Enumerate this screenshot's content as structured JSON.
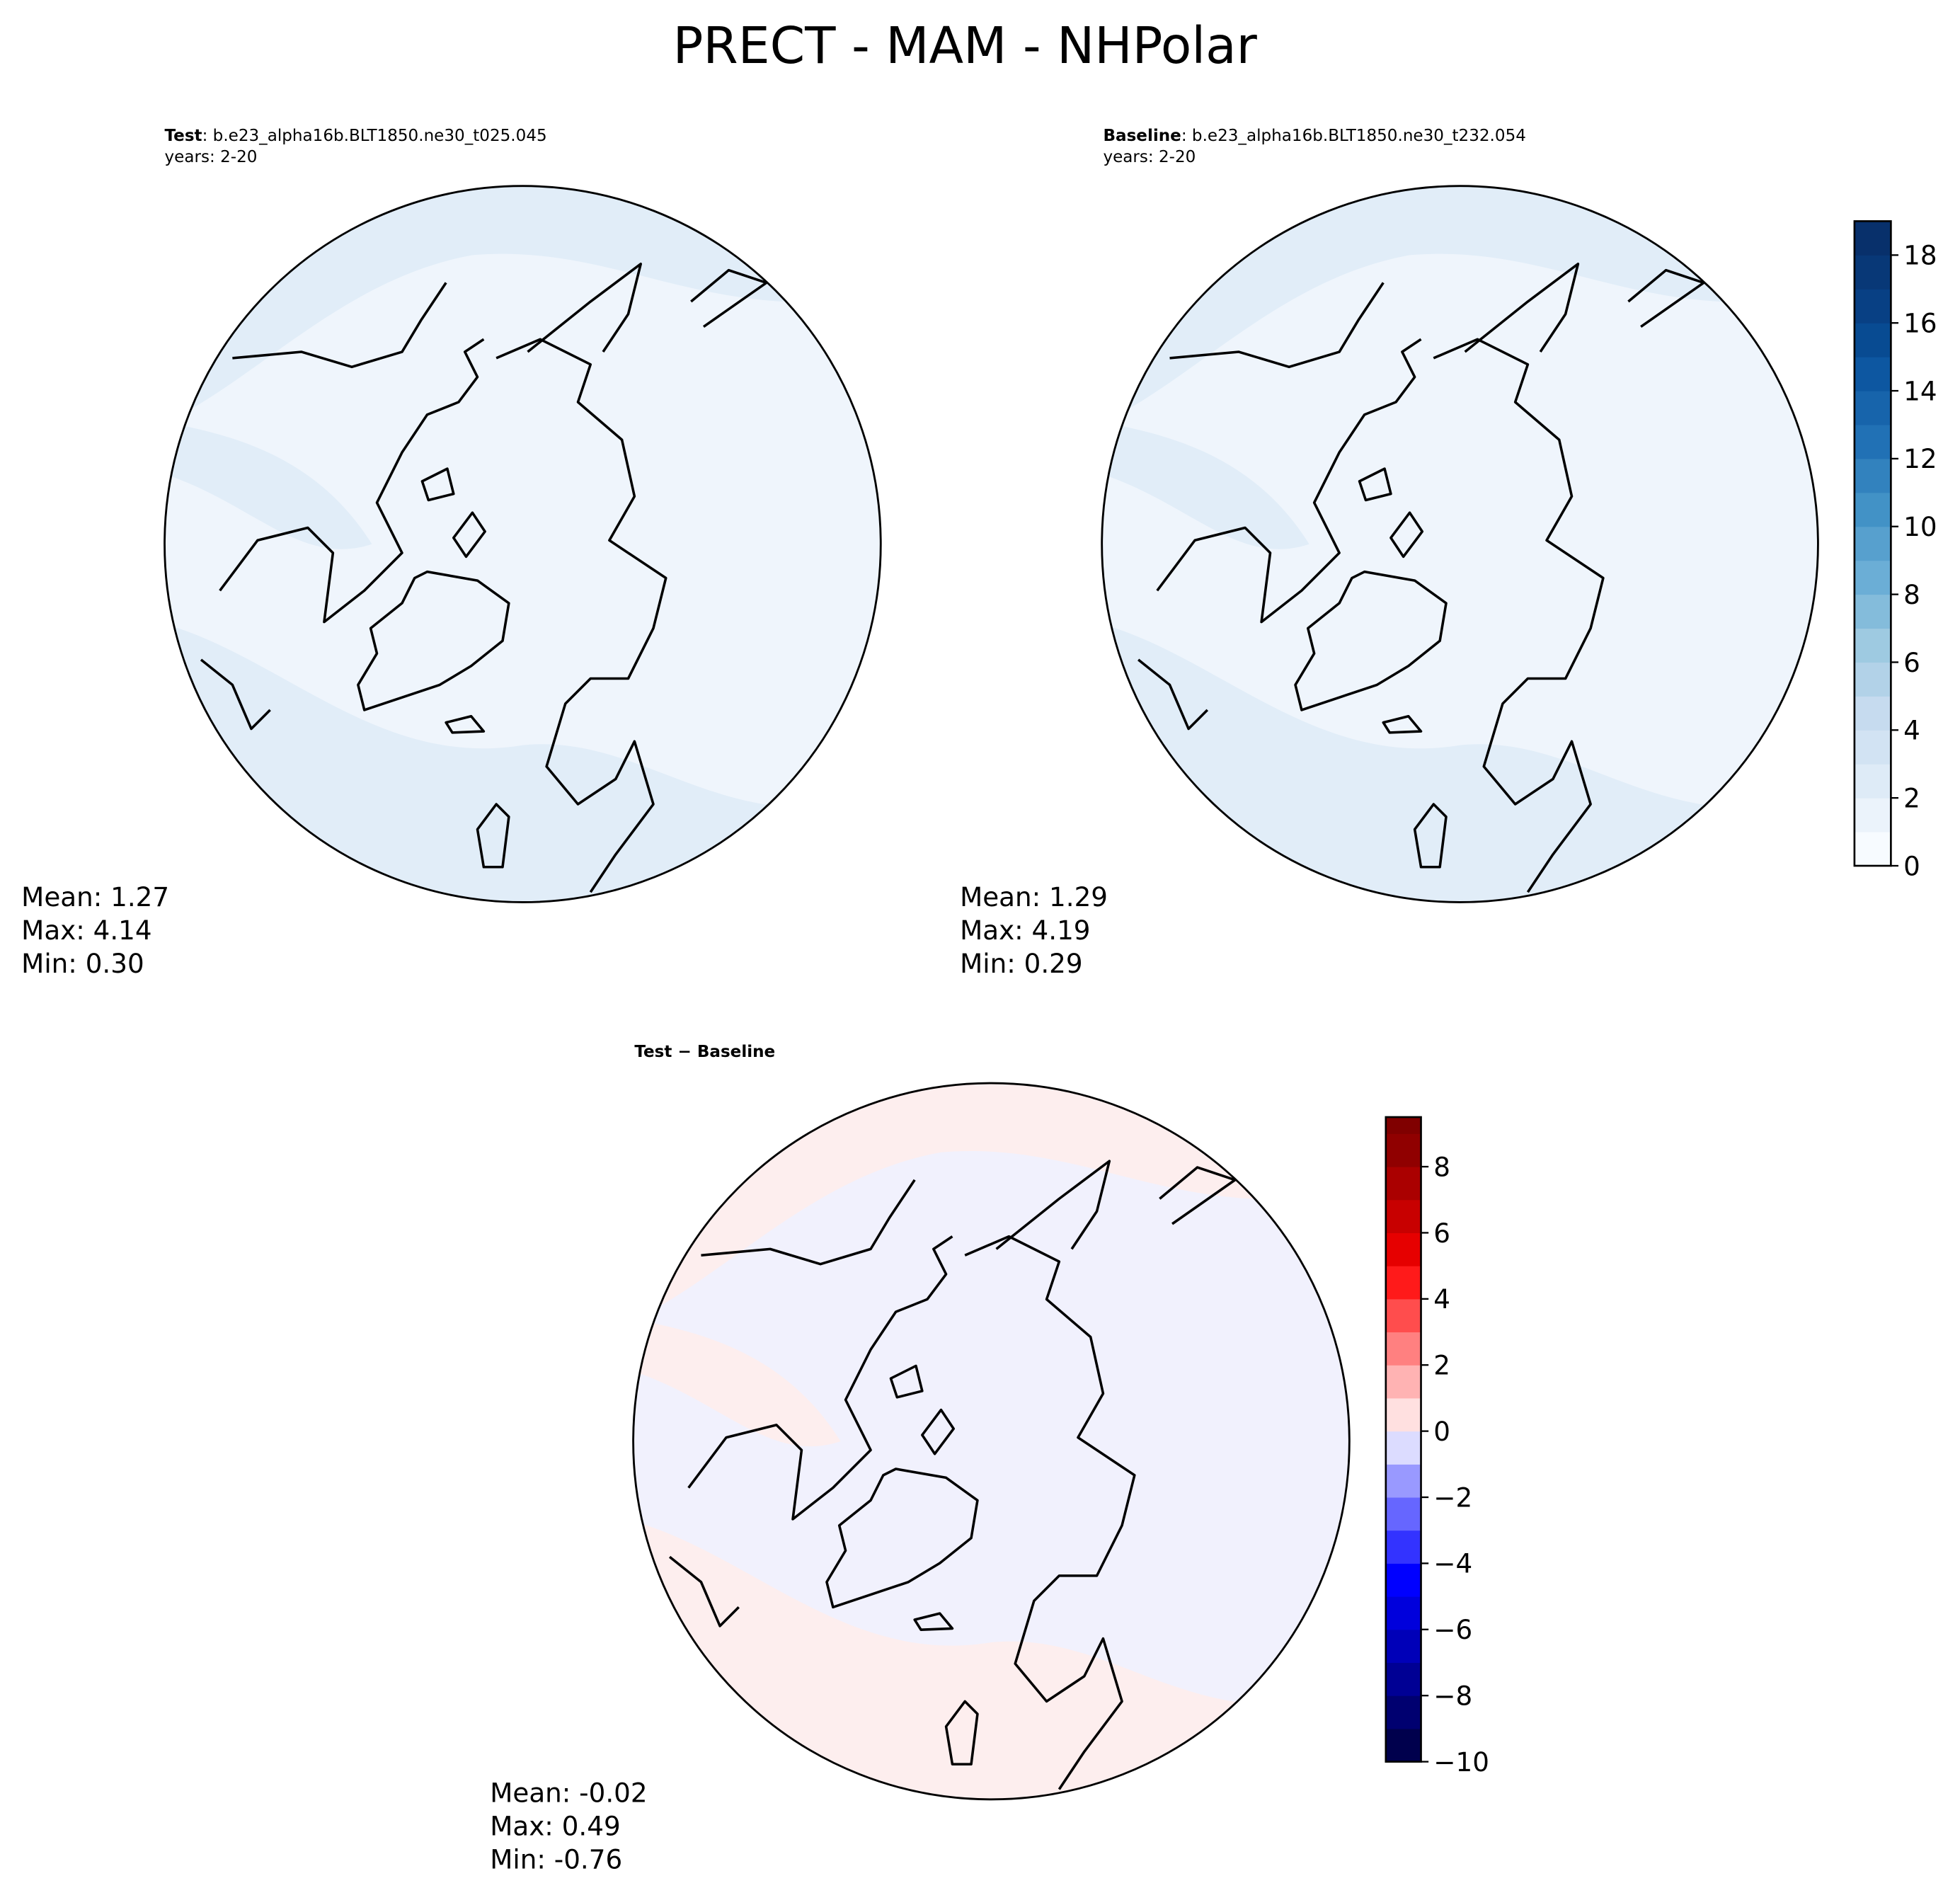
{
  "title": "PRECT - MAM - NHPolar",
  "chart_data": [
    {
      "type": "map",
      "title_bold": "Test",
      "title": ": b.e23_alpha16b.BLT1850.ne30_t025.045",
      "subtitle": "years: 2-20",
      "annotations": [
        "Mean:  1.27",
        "Max:  4.14",
        "Min:  0.30"
      ]
    },
    {
      "type": "map",
      "title_bold": "Baseline",
      "title": ": b.e23_alpha16b.BLT1850.ne30_t232.054",
      "subtitle": "years: 2-20",
      "annotations": [
        "Mean:  1.29",
        "Max:  4.19",
        "Min:  0.29"
      ],
      "colorbar": {
        "ylim": [
          0,
          19
        ],
        "yticks": [
          0,
          2,
          4,
          6,
          8,
          10,
          12,
          14,
          16,
          18
        ],
        "bins": [
          0,
          1,
          2,
          3,
          4,
          5,
          6,
          7,
          8,
          9,
          10,
          11,
          12,
          13,
          14,
          15,
          16,
          17,
          18,
          19
        ],
        "colors": [
          "#f7fbff",
          "#ebf3fb",
          "#deebf7",
          "#d2e3f3",
          "#c6dbef",
          "#b2d2e8",
          "#9ecae1",
          "#84bcdb",
          "#6baed6",
          "#57a0ce",
          "#4292c6",
          "#3282be",
          "#2171b5",
          "#1764ab",
          "#0d57a1",
          "#084b92",
          "#084084",
          "#083877",
          "#08306b"
        ]
      }
    },
    {
      "type": "map",
      "title_bold": "Test − Baseline",
      "annotations": [
        "Mean: -0.02",
        "Max:  0.49",
        "Min: -0.76"
      ],
      "colorbar": {
        "ylim": [
          -10,
          9.5
        ],
        "yticks": [
          {
            "value": -10,
            "label": "−10"
          },
          {
            "value": -8,
            "label": "−8"
          },
          {
            "value": -6,
            "label": "−6"
          },
          {
            "value": -4,
            "label": "−4"
          },
          {
            "value": -2,
            "label": "−2"
          },
          0,
          2,
          4,
          6,
          8
        ],
        "bins": [
          -10,
          -9,
          -8,
          -7,
          -6,
          -5,
          -4,
          -3,
          -2,
          -1,
          0,
          1,
          2,
          3,
          4,
          5,
          6,
          7,
          8,
          9,
          9.5
        ],
        "colors": [
          "#00004d",
          "#000070",
          "#000094",
          "#0000b8",
          "#0000dc",
          "#0000ff",
          "#3333ff",
          "#6666ff",
          "#9999ff",
          "#dcdcff",
          "#ffe0e0",
          "#ffb3b3",
          "#ff8080",
          "#ff4d4d",
          "#ff1a1a",
          "#e60000",
          "#c80000",
          "#aa0000",
          "#900000",
          "#800000"
        ]
      }
    }
  ]
}
